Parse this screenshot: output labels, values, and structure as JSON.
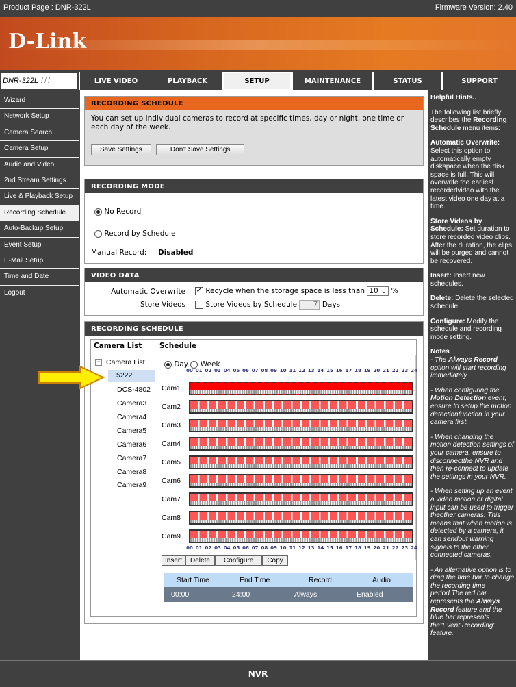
{
  "topbar": {
    "product": "Product Page : DNR-322L",
    "firmware": "Firmware Version: 2.40"
  },
  "brand": {
    "logo": "D-Link",
    "model": "DNR-322L"
  },
  "nav": {
    "tabs": [
      {
        "label": "LIVE VIDEO"
      },
      {
        "label": "PLAYBACK"
      },
      {
        "label": "SETUP",
        "active": true
      },
      {
        "label": "MAINTENANCE"
      },
      {
        "label": "STATUS"
      },
      {
        "label": "SUPPORT"
      }
    ]
  },
  "sidebar": {
    "items": [
      {
        "label": "Wizard"
      },
      {
        "label": "Network Setup"
      },
      {
        "label": "Camera Search"
      },
      {
        "label": "Camera Setup"
      },
      {
        "label": "Audio and Video"
      },
      {
        "label": "2nd Stream Settings"
      },
      {
        "label": "Live & Playback Setup"
      },
      {
        "label": "Recording Schedule",
        "active": true
      },
      {
        "label": "Auto-Backup Setup"
      },
      {
        "label": "Event Setup"
      },
      {
        "label": "E-Mail Setup"
      },
      {
        "label": "Time and Date"
      },
      {
        "label": "Logout"
      }
    ]
  },
  "intro": {
    "title": "RECORDING SCHEDULE",
    "text": "You can set up individual cameras to record at specific times, day or night, one time or each day of the week.",
    "save": "Save Settings",
    "dont_save": "Don't Save Settings"
  },
  "mode": {
    "title": "RECORDING MODE",
    "no_record": "No Record",
    "by_schedule": "Record by Schedule",
    "selected": "No Record",
    "manual_label": "Manual Record:",
    "manual_value": "Disabled"
  },
  "video_data": {
    "title": "VIDEO DATA",
    "overwrite_label": "Automatic Overwrite",
    "overwrite_text": "Recycle when the storage space is less than",
    "overwrite_checked": true,
    "percent": "10",
    "percent_unit": "%",
    "store_label": "Store Videos",
    "store_text": "Store Videos by Schedule",
    "store_checked": false,
    "days": "7",
    "days_unit": "Days"
  },
  "schedule": {
    "title": "RECORDING SCHEDULE",
    "camera_list_header": "Camera List",
    "schedule_header": "Schedule",
    "tree_root": "Camera List",
    "cameras": [
      "5222",
      "DCS-4802",
      "Camera3",
      "Camera4",
      "Camera5",
      "Camera6",
      "Camera7",
      "Camera8",
      "Camera9"
    ],
    "selected_camera": "5222",
    "day": "Day",
    "week": "Week",
    "view": "Day",
    "hours": [
      "00",
      "01",
      "02",
      "03",
      "04",
      "05",
      "06",
      "07",
      "08",
      "09",
      "10",
      "11",
      "12",
      "13",
      "14",
      "15",
      "16",
      "17",
      "18",
      "19",
      "20",
      "21",
      "22",
      "23",
      "24"
    ],
    "rows": [
      "Cam1",
      "Cam2",
      "Cam3",
      "Cam4",
      "Cam5",
      "Cam6",
      "Cam7",
      "Cam8",
      "Cam9"
    ],
    "buttons": {
      "insert": "Insert",
      "delete": "Delete",
      "configure": "Configure",
      "copy": "Copy"
    },
    "table": {
      "headers": [
        "Start Time",
        "End Time",
        "Record",
        "Audio"
      ],
      "rows": [
        [
          "00:00",
          "24:00",
          "Always",
          "Enabled"
        ]
      ]
    },
    "colors": {
      "always": "#ff0000",
      "event": "#0000ff"
    }
  },
  "hints": {
    "title": "Helpful Hints..",
    "p1a": "The following list briefly describes the ",
    "p1b": "Recording Schedule",
    "p1c": " menu items:",
    "ao_t": "Automatic Overwrite:",
    "ao": " Select this option to automatically empty diskspace when the disk space is full. This will overwrite the earliest recordedvideo with the latest video one day at a time.",
    "sv_t": "Store Videos by Schedule:",
    "sv": " Set duration to store recorded video clips. After the duration, the clips will be purged and cannot be recovered.",
    "in_t": "Insert:",
    "in": " Insert new schedules.",
    "de_t": "Delete:",
    "de": " Delete the selected schedule.",
    "co_t": "Configure:",
    "co": " Modify the schedule and recording mode setting.",
    "notes": "Notes",
    "n1a": "- The ",
    "n1b": "Always Record",
    "n1c": " option will start recording immediately.",
    "n2a": "- When configuring the ",
    "n2b": "Motion Detection",
    "n2c": " event, ensure to setup the motion detectionfunction in your camera first.",
    "n3": "- When changing the motion detection settings of your camera, ensure to disconnectthe NVR and then re-connect to update the settings in your NVR.",
    "n4": "- When setting up an event, a video motion or digital input can be used to trigger theother cameras. This means that when motion is detected by a camera, it can sendout warning signals to the other connected cameras.",
    "n5a": "- An alternative option is to drag the time bar to change the recording time period.The red bar represents the ",
    "n5b": "Always Record",
    "n5c": " feature and the blue bar represents the\"Event Recording\" feature."
  },
  "footer": {
    "label": "NVR"
  }
}
